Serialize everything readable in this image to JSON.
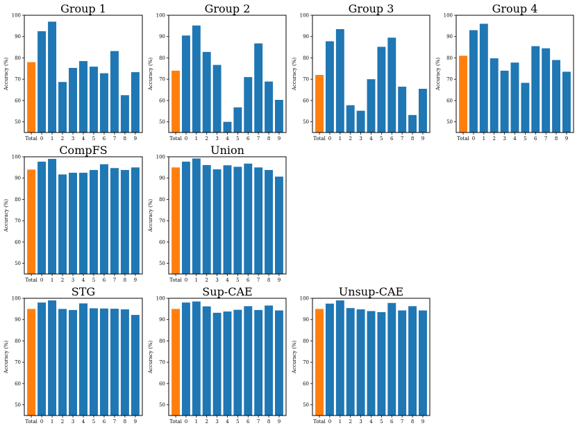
{
  "figure": {
    "colors": {
      "total": "#ff7f0e",
      "class": "#1f77b4"
    }
  },
  "chart_data": [
    {
      "type": "bar",
      "title": "Group 1",
      "ylabel": "Accuracy (%)",
      "ylim": [
        45,
        100
      ],
      "yticks": [
        50,
        60,
        70,
        80,
        90,
        100
      ],
      "categories": [
        "Total",
        "0",
        "1",
        "2",
        "3",
        "4",
        "5",
        "6",
        "7",
        "8",
        "9"
      ],
      "values": [
        78.0,
        92.5,
        97.0,
        68.7,
        75.3,
        78.5,
        75.9,
        72.8,
        83.2,
        62.5,
        73.3
      ],
      "grid": false
    },
    {
      "type": "bar",
      "title": "Group 2",
      "ylabel": "Accuracy (%)",
      "ylim": [
        45,
        100
      ],
      "yticks": [
        50,
        60,
        70,
        80,
        90,
        100
      ],
      "categories": [
        "Total",
        "0",
        "1",
        "2",
        "3",
        "4",
        "5",
        "6",
        "7",
        "8",
        "9"
      ],
      "values": [
        74.0,
        90.5,
        95.2,
        82.8,
        76.7,
        50.0,
        56.8,
        71.0,
        86.8,
        68.9,
        60.3
      ],
      "grid": false
    },
    {
      "type": "bar",
      "title": "Group 3",
      "ylabel": "Accuracy (%)",
      "ylim": [
        45,
        100
      ],
      "yticks": [
        50,
        60,
        70,
        80,
        90,
        100
      ],
      "categories": [
        "Total",
        "0",
        "1",
        "2",
        "3",
        "4",
        "5",
        "6",
        "7",
        "8",
        "9"
      ],
      "values": [
        72.0,
        87.8,
        93.5,
        57.8,
        55.2,
        70.0,
        85.2,
        89.5,
        66.5,
        53.2,
        65.5
      ],
      "grid": false
    },
    {
      "type": "bar",
      "title": "Group 4",
      "ylabel": "Accuracy (%)",
      "ylim": [
        45,
        100
      ],
      "yticks": [
        50,
        60,
        70,
        80,
        90,
        100
      ],
      "categories": [
        "Total",
        "0",
        "1",
        "2",
        "3",
        "4",
        "5",
        "6",
        "7",
        "8",
        "9"
      ],
      "values": [
        81.0,
        93.0,
        96.0,
        79.8,
        74.0,
        77.8,
        68.3,
        85.5,
        84.5,
        79.0,
        73.5
      ],
      "grid": false
    },
    {
      "type": "bar",
      "title": "CompFS",
      "ylabel": "Accuracy (%)",
      "ylim": [
        45,
        100
      ],
      "yticks": [
        50,
        60,
        70,
        80,
        90,
        100
      ],
      "categories": [
        "Total",
        "0",
        "1",
        "2",
        "3",
        "4",
        "5",
        "6",
        "7",
        "8",
        "9"
      ],
      "values": [
        94.0,
        97.7,
        99.0,
        91.7,
        92.5,
        92.5,
        93.8,
        96.5,
        94.7,
        93.8,
        95.0
      ],
      "grid": false
    },
    {
      "type": "bar",
      "title": "Union",
      "ylabel": "Accuracy (%)",
      "ylim": [
        45,
        100
      ],
      "yticks": [
        50,
        60,
        70,
        80,
        90,
        100
      ],
      "categories": [
        "Total",
        "0",
        "1",
        "2",
        "3",
        "4",
        "5",
        "6",
        "7",
        "8",
        "9"
      ],
      "values": [
        95.0,
        97.7,
        99.2,
        96.1,
        94.1,
        96.0,
        95.3,
        96.8,
        95.0,
        93.8,
        90.7
      ],
      "grid": false
    },
    {
      "type": "bar",
      "title": "STG",
      "ylabel": "Accuracy (%)",
      "ylim": [
        45,
        100
      ],
      "yticks": [
        50,
        60,
        70,
        80,
        90,
        100
      ],
      "categories": [
        "Total",
        "0",
        "1",
        "2",
        "3",
        "4",
        "5",
        "6",
        "7",
        "8",
        "9"
      ],
      "values": [
        95.0,
        98.0,
        99.0,
        95.0,
        94.5,
        97.6,
        95.3,
        95.2,
        95.1,
        94.8,
        92.2
      ],
      "grid": false
    },
    {
      "type": "bar",
      "title": "Sup-CAE",
      "ylabel": "Accuracy (%)",
      "ylim": [
        45,
        100
      ],
      "yticks": [
        50,
        60,
        70,
        80,
        90,
        100
      ],
      "categories": [
        "Total",
        "0",
        "1",
        "2",
        "3",
        "4",
        "5",
        "6",
        "7",
        "8",
        "9"
      ],
      "values": [
        95.0,
        98.0,
        98.5,
        96.2,
        93.2,
        93.8,
        94.6,
        96.3,
        94.5,
        96.6,
        94.3
      ],
      "grid": false
    },
    {
      "type": "bar",
      "title": "Unsup-CAE",
      "ylabel": "Accuracy (%)",
      "ylim": [
        45,
        100
      ],
      "yticks": [
        50,
        60,
        70,
        80,
        90,
        100
      ],
      "categories": [
        "Total",
        "0",
        "1",
        "2",
        "3",
        "4",
        "5",
        "6",
        "7",
        "8",
        "9"
      ],
      "values": [
        95.0,
        97.5,
        99.0,
        95.4,
        94.8,
        94.0,
        93.5,
        97.8,
        94.3,
        96.3,
        94.3
      ],
      "grid": false
    }
  ]
}
